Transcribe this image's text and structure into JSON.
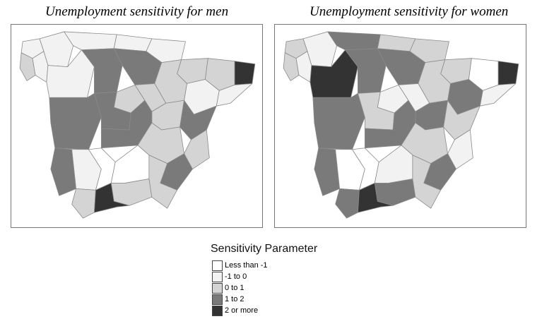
{
  "maps": [
    {
      "title": "Unemployment sensitivity for men",
      "provinces": [
        {
          "id": "galicia-lugo",
          "cls": 1
        },
        {
          "id": "galicia-coruna",
          "cls": 1
        },
        {
          "id": "galicia-pontevedra",
          "cls": 2
        },
        {
          "id": "galicia-ourense",
          "cls": 1
        },
        {
          "id": "asturias",
          "cls": 1
        },
        {
          "id": "cantabria",
          "cls": 1
        },
        {
          "id": "basque-navarre",
          "cls": 1
        },
        {
          "id": "catalonia-girona",
          "cls": 4
        },
        {
          "id": "catalonia-lleida",
          "cls": 2
        },
        {
          "id": "catalonia-barcelona",
          "cls": 1
        },
        {
          "id": "aragon-north",
          "cls": 2
        },
        {
          "id": "aragon-south",
          "cls": 1
        },
        {
          "id": "castile-west",
          "cls": 1
        },
        {
          "id": "castile-center",
          "cls": 3
        },
        {
          "id": "castile-east",
          "cls": 3
        },
        {
          "id": "la-rioja-soria",
          "cls": 2
        },
        {
          "id": "madrid",
          "cls": 2
        },
        {
          "id": "guadalajara",
          "cls": 2
        },
        {
          "id": "extremadura",
          "cls": 3
        },
        {
          "id": "toledo",
          "cls": 3
        },
        {
          "id": "cuenca",
          "cls": 2
        },
        {
          "id": "valencia-castellon",
          "cls": 3
        },
        {
          "id": "valencia-south",
          "cls": 2
        },
        {
          "id": "ciudad-real",
          "cls": 3
        },
        {
          "id": "albacete",
          "cls": 2
        },
        {
          "id": "murcia",
          "cls": 3
        },
        {
          "id": "andalusia-huelva",
          "cls": 3
        },
        {
          "id": "andalusia-seville",
          "cls": 1
        },
        {
          "id": "andalusia-cordoba",
          "cls": 0
        },
        {
          "id": "andalusia-jaen",
          "cls": 0
        },
        {
          "id": "andalusia-granada",
          "cls": 2
        },
        {
          "id": "andalusia-almeria",
          "cls": 2
        },
        {
          "id": "andalusia-cadiz",
          "cls": 2
        },
        {
          "id": "andalusia-malaga",
          "cls": 4
        }
      ]
    },
    {
      "title": "Unemployment sensitivity for women",
      "provinces": [
        {
          "id": "galicia-lugo",
          "cls": 1
        },
        {
          "id": "galicia-coruna",
          "cls": 2
        },
        {
          "id": "galicia-pontevedra",
          "cls": 2
        },
        {
          "id": "galicia-ourense",
          "cls": 1
        },
        {
          "id": "asturias",
          "cls": 3
        },
        {
          "id": "cantabria",
          "cls": 2
        },
        {
          "id": "basque-navarre",
          "cls": 2
        },
        {
          "id": "catalonia-girona",
          "cls": 4
        },
        {
          "id": "catalonia-lleida",
          "cls": 0
        },
        {
          "id": "catalonia-barcelona",
          "cls": 1
        },
        {
          "id": "aragon-north",
          "cls": 2
        },
        {
          "id": "aragon-south",
          "cls": 3
        },
        {
          "id": "castile-west",
          "cls": 4
        },
        {
          "id": "castile-center",
          "cls": 3
        },
        {
          "id": "castile-east",
          "cls": 3
        },
        {
          "id": "la-rioja-soria",
          "cls": 2
        },
        {
          "id": "madrid",
          "cls": 1
        },
        {
          "id": "guadalajara",
          "cls": 1
        },
        {
          "id": "extremadura",
          "cls": 3
        },
        {
          "id": "toledo",
          "cls": 2
        },
        {
          "id": "cuenca",
          "cls": 3
        },
        {
          "id": "valencia-castellon",
          "cls": 2
        },
        {
          "id": "valencia-south",
          "cls": 1
        },
        {
          "id": "ciudad-real",
          "cls": 3
        },
        {
          "id": "albacete",
          "cls": 2
        },
        {
          "id": "murcia",
          "cls": 3
        },
        {
          "id": "andalusia-huelva",
          "cls": 3
        },
        {
          "id": "andalusia-seville",
          "cls": 0
        },
        {
          "id": "andalusia-cordoba",
          "cls": 0
        },
        {
          "id": "andalusia-jaen",
          "cls": 1
        },
        {
          "id": "andalusia-granada",
          "cls": 3
        },
        {
          "id": "andalusia-almeria",
          "cls": 2
        },
        {
          "id": "andalusia-cadiz",
          "cls": 3
        },
        {
          "id": "andalusia-malaga",
          "cls": 4
        }
      ]
    }
  ],
  "legend": {
    "title": "Sensitivity Parameter",
    "items": [
      {
        "label": "Less than -1",
        "color": "#ffffff"
      },
      {
        "label": "-1 to 0",
        "color": "#f2f2f2"
      },
      {
        "label": "0 to 1",
        "color": "#d4d4d4"
      },
      {
        "label": "1 to 2",
        "color": "#7a7a7a"
      },
      {
        "label": "2 or more",
        "color": "#333333"
      }
    ]
  }
}
